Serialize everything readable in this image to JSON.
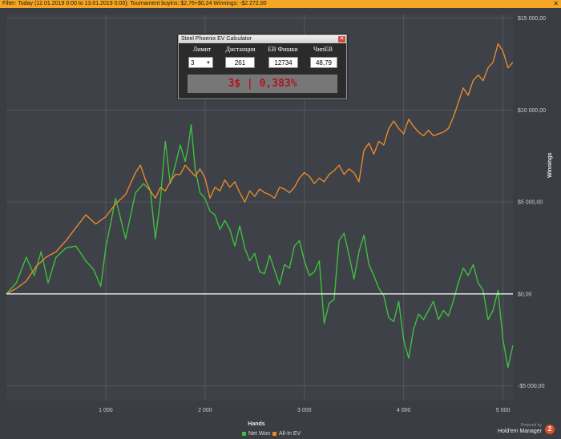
{
  "filter_bar": {
    "text": "Filter: Today (12.01.2019 0:00 to 13.01.2019 0:00); Tournament buyins: $2,76+$0,24  Winnings: -$2 272,00",
    "close_glyph": "✕"
  },
  "ev_calculator": {
    "title": "Steel Phoenix EV Calculator",
    "headers": [
      "Лимит",
      "Дистанция",
      "ЕВ Фишки",
      "ЧипЕВ"
    ],
    "limit_value": "3",
    "distance": "261",
    "ev_chips": "12734",
    "chip_ev": "48,79",
    "result": "3$ | 0,383%"
  },
  "legend": [
    {
      "label": "Net Won",
      "color": "#3fbf3f"
    },
    {
      "label": "All-In EV",
      "color": "#e8892e"
    }
  ],
  "branding": {
    "powered_by": "Powered by",
    "product": "Hold'em Manager",
    "badge": "2"
  },
  "chart_data": {
    "type": "line",
    "xlabel": "Hands",
    "ylabel": "Winnings",
    "xlim": [
      0,
      5100
    ],
    "ylim": [
      -5800,
      15200
    ],
    "x_ticks": [
      1000,
      2000,
      3000,
      4000,
      5000
    ],
    "x_tick_labels": [
      "1 000",
      "2 000",
      "3 000",
      "4 000",
      "5 000"
    ],
    "y_ticks": [
      -5000,
      0,
      5000,
      10000,
      15000
    ],
    "y_tick_labels": [
      "-$5 000,00",
      "$0,00",
      "$5 000,00",
      "$10 000,00",
      "$15 000,00"
    ],
    "grid": true,
    "legend_position": "bottom-center",
    "series": [
      {
        "name": "Net Won",
        "color": "#3fbf3f",
        "points": [
          [
            0,
            0
          ],
          [
            100,
            600
          ],
          [
            200,
            2000
          ],
          [
            280,
            1000
          ],
          [
            350,
            2300
          ],
          [
            420,
            600
          ],
          [
            500,
            2000
          ],
          [
            600,
            2500
          ],
          [
            700,
            2600
          ],
          [
            800,
            1800
          ],
          [
            880,
            1300
          ],
          [
            950,
            400
          ],
          [
            1000,
            2500
          ],
          [
            1100,
            5200
          ],
          [
            1200,
            3000
          ],
          [
            1300,
            5500
          ],
          [
            1380,
            6000
          ],
          [
            1450,
            5600
          ],
          [
            1500,
            3000
          ],
          [
            1550,
            5100
          ],
          [
            1600,
            8300
          ],
          [
            1650,
            6000
          ],
          [
            1700,
            7000
          ],
          [
            1750,
            8100
          ],
          [
            1800,
            7200
          ],
          [
            1830,
            8000
          ],
          [
            1860,
            9200
          ],
          [
            1900,
            6800
          ],
          [
            1950,
            5500
          ],
          [
            2000,
            5200
          ],
          [
            2050,
            4500
          ],
          [
            2100,
            4300
          ],
          [
            2150,
            3500
          ],
          [
            2200,
            4000
          ],
          [
            2250,
            3500
          ],
          [
            2300,
            2600
          ],
          [
            2350,
            3700
          ],
          [
            2400,
            2500
          ],
          [
            2450,
            1800
          ],
          [
            2500,
            2200
          ],
          [
            2550,
            1200
          ],
          [
            2600,
            1100
          ],
          [
            2650,
            2100
          ],
          [
            2700,
            1300
          ],
          [
            2750,
            500
          ],
          [
            2800,
            1600
          ],
          [
            2850,
            1400
          ],
          [
            2900,
            2600
          ],
          [
            2950,
            2900
          ],
          [
            3000,
            1800
          ],
          [
            3050,
            1000
          ],
          [
            3100,
            1200
          ],
          [
            3150,
            1800
          ],
          [
            3200,
            -1600
          ],
          [
            3250,
            -500
          ],
          [
            3300,
            -300
          ],
          [
            3350,
            2900
          ],
          [
            3400,
            3300
          ],
          [
            3450,
            2100
          ],
          [
            3500,
            800
          ],
          [
            3550,
            2300
          ],
          [
            3600,
            3200
          ],
          [
            3650,
            1600
          ],
          [
            3700,
            1000
          ],
          [
            3750,
            300
          ],
          [
            3800,
            -100
          ],
          [
            3850,
            -1300
          ],
          [
            3900,
            -1500
          ],
          [
            3950,
            -400
          ],
          [
            4000,
            -2500
          ],
          [
            4050,
            -3500
          ],
          [
            4100,
            -1900
          ],
          [
            4150,
            -1100
          ],
          [
            4200,
            -1400
          ],
          [
            4250,
            -900
          ],
          [
            4300,
            -400
          ],
          [
            4350,
            -1400
          ],
          [
            4400,
            -900
          ],
          [
            4450,
            -1200
          ],
          [
            4500,
            -400
          ],
          [
            4550,
            600
          ],
          [
            4600,
            1400
          ],
          [
            4650,
            1000
          ],
          [
            4700,
            1600
          ],
          [
            4750,
            600
          ],
          [
            4800,
            200
          ],
          [
            4850,
            -1400
          ],
          [
            4900,
            -900
          ],
          [
            4950,
            200
          ],
          [
            5000,
            -2500
          ],
          [
            5050,
            -4000
          ],
          [
            5100,
            -2800
          ]
        ]
      },
      {
        "name": "All-In EV",
        "color": "#e8892e",
        "points": [
          [
            0,
            0
          ],
          [
            100,
            300
          ],
          [
            200,
            700
          ],
          [
            300,
            1500
          ],
          [
            400,
            2000
          ],
          [
            500,
            2300
          ],
          [
            600,
            2900
          ],
          [
            700,
            3600
          ],
          [
            800,
            4300
          ],
          [
            900,
            3800
          ],
          [
            1000,
            4200
          ],
          [
            1100,
            4900
          ],
          [
            1200,
            5400
          ],
          [
            1300,
            6600
          ],
          [
            1350,
            7000
          ],
          [
            1400,
            6200
          ],
          [
            1450,
            5600
          ],
          [
            1500,
            5200
          ],
          [
            1550,
            5800
          ],
          [
            1600,
            5600
          ],
          [
            1650,
            6100
          ],
          [
            1700,
            6500
          ],
          [
            1750,
            6500
          ],
          [
            1800,
            7000
          ],
          [
            1850,
            6700
          ],
          [
            1900,
            6400
          ],
          [
            1950,
            6800
          ],
          [
            2000,
            6300
          ],
          [
            2050,
            5200
          ],
          [
            2100,
            5800
          ],
          [
            2150,
            5600
          ],
          [
            2200,
            6200
          ],
          [
            2250,
            5800
          ],
          [
            2300,
            6100
          ],
          [
            2350,
            5500
          ],
          [
            2400,
            5000
          ],
          [
            2450,
            5600
          ],
          [
            2500,
            5300
          ],
          [
            2550,
            5700
          ],
          [
            2600,
            5500
          ],
          [
            2650,
            5400
          ],
          [
            2700,
            5200
          ],
          [
            2750,
            5800
          ],
          [
            2800,
            5700
          ],
          [
            2850,
            5500
          ],
          [
            2900,
            5800
          ],
          [
            2950,
            6300
          ],
          [
            3000,
            6600
          ],
          [
            3050,
            6400
          ],
          [
            3100,
            6000
          ],
          [
            3150,
            6300
          ],
          [
            3200,
            6100
          ],
          [
            3250,
            6500
          ],
          [
            3300,
            6700
          ],
          [
            3350,
            7000
          ],
          [
            3400,
            6500
          ],
          [
            3450,
            6800
          ],
          [
            3500,
            6600
          ],
          [
            3550,
            6100
          ],
          [
            3600,
            7800
          ],
          [
            3650,
            8200
          ],
          [
            3700,
            7600
          ],
          [
            3750,
            8300
          ],
          [
            3800,
            8100
          ],
          [
            3850,
            9000
          ],
          [
            3900,
            9400
          ],
          [
            3950,
            9000
          ],
          [
            4000,
            8700
          ],
          [
            4050,
            9500
          ],
          [
            4100,
            9100
          ],
          [
            4150,
            8800
          ],
          [
            4200,
            8600
          ],
          [
            4250,
            8900
          ],
          [
            4300,
            8600
          ],
          [
            4350,
            8700
          ],
          [
            4400,
            8800
          ],
          [
            4450,
            9000
          ],
          [
            4500,
            9600
          ],
          [
            4550,
            10400
          ],
          [
            4600,
            11200
          ],
          [
            4650,
            10800
          ],
          [
            4700,
            11600
          ],
          [
            4750,
            11900
          ],
          [
            4800,
            11600
          ],
          [
            4850,
            12300
          ],
          [
            4900,
            12600
          ],
          [
            4950,
            13600
          ],
          [
            5000,
            13200
          ],
          [
            5050,
            12300
          ],
          [
            5100,
            12600
          ]
        ]
      }
    ]
  }
}
